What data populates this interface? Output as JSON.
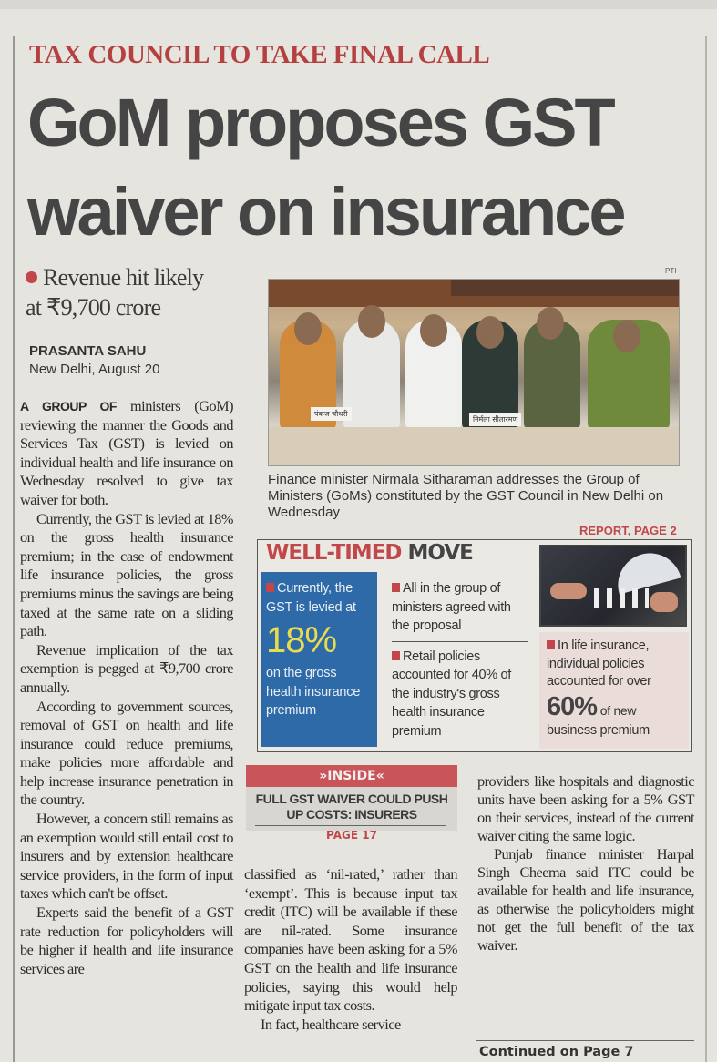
{
  "kicker": "TAX COUNCIL TO TAKE FINAL CALL",
  "headline": {
    "line1": "GoM proposes GST",
    "line2": "waiver on insurance"
  },
  "subhead": {
    "line1": "Revenue hit likely",
    "line2": "at ₹9,700 crore"
  },
  "byline": {
    "author": "PRASANTA SAHU",
    "dateline": "New Delhi, August 20"
  },
  "colA": {
    "lead": "A GROUP OF",
    "p1": " ministers (GoM) reviewing the manner the Goods and Services Tax (GST) is levied on individual health and life insurance on Wednesday resolved to give tax waiver for both.",
    "p2": "Currently, the GST is levied at 18% on the gross health insurance premium; in the case of endowment life insurance policies, the gross premiums minus the savings are being taxed at the same rate on a sliding path.",
    "p3": "Revenue implication of the tax exemption is pegged at ₹9,700 crore annually.",
    "p4": "According to government sources, removal of GST on health and life insurance could reduce premiums, make policies more affordable and help increase insurance penetration in the country.",
    "p5": "However, a concern still remains as an exemption would still entail cost to insurers and by extension healthcare service providers, in the form of input taxes which can't be offset.",
    "p6": "Experts said the benefit of a GST rate reduction for policyholders will be higher if health and life insurance services are"
  },
  "photo": {
    "credit": "PTI",
    "nameplate1": "पंकज चौधरी",
    "nameplate2": "निर्मला सीतारमण"
  },
  "caption": "Finance minister Nirmala Sitharaman addresses the Group of Ministers (GoMs) constituted by the GST Council in New Delhi on Wednesday",
  "caption_ref": "REPORT, PAGE 2",
  "well_timed": {
    "title_red": "WELL-TIMED",
    "title_gray": "MOVE",
    "blue_pre": "Currently, the GST is levied at",
    "blue_big": "18%",
    "blue_post": "on the gross health insurance premium",
    "mid1": "All in the group of ministers agreed with the proposal",
    "mid2": "Retail policies accounted for 40% of the industry's gross health insurance premium",
    "pink_pre": "In life insurance, individual policies accounted for over",
    "pink_big": "60%",
    "pink_small": "of new",
    "pink_post": "business premium"
  },
  "inside": {
    "label": "»INSIDE«",
    "headline": "FULL GST WAIVER COULD PUSH UP COSTS: INSURERS",
    "page": "PAGE 17"
  },
  "colB": {
    "p1": "classified as ‘nil-rated,’ rather than ‘exempt’. This is because input tax credit (ITC) will be available if these are nil-rated. Some insurance companies have been asking for a 5% GST on the health and life insurance policies, saying this would help mitigate input tax costs.",
    "p2": "In fact, healthcare service"
  },
  "colC": {
    "p1": "providers like hospitals and diagnostic units have been asking for a 5% GST on their services, instead of the current waiver citing the same logic.",
    "p2": "Punjab finance minister Harpal Singh Cheema said ITC could be available for health and life insurance, as otherwise the policyholders might not get the full benefit of the tax waiver."
  },
  "continued": "Continued on Page 7",
  "colors": {
    "accent_red": "#c2474a",
    "box_blue": "#2f6aa8",
    "highlight_yellow": "#e8dc4c",
    "paper": "#e6e4de"
  }
}
